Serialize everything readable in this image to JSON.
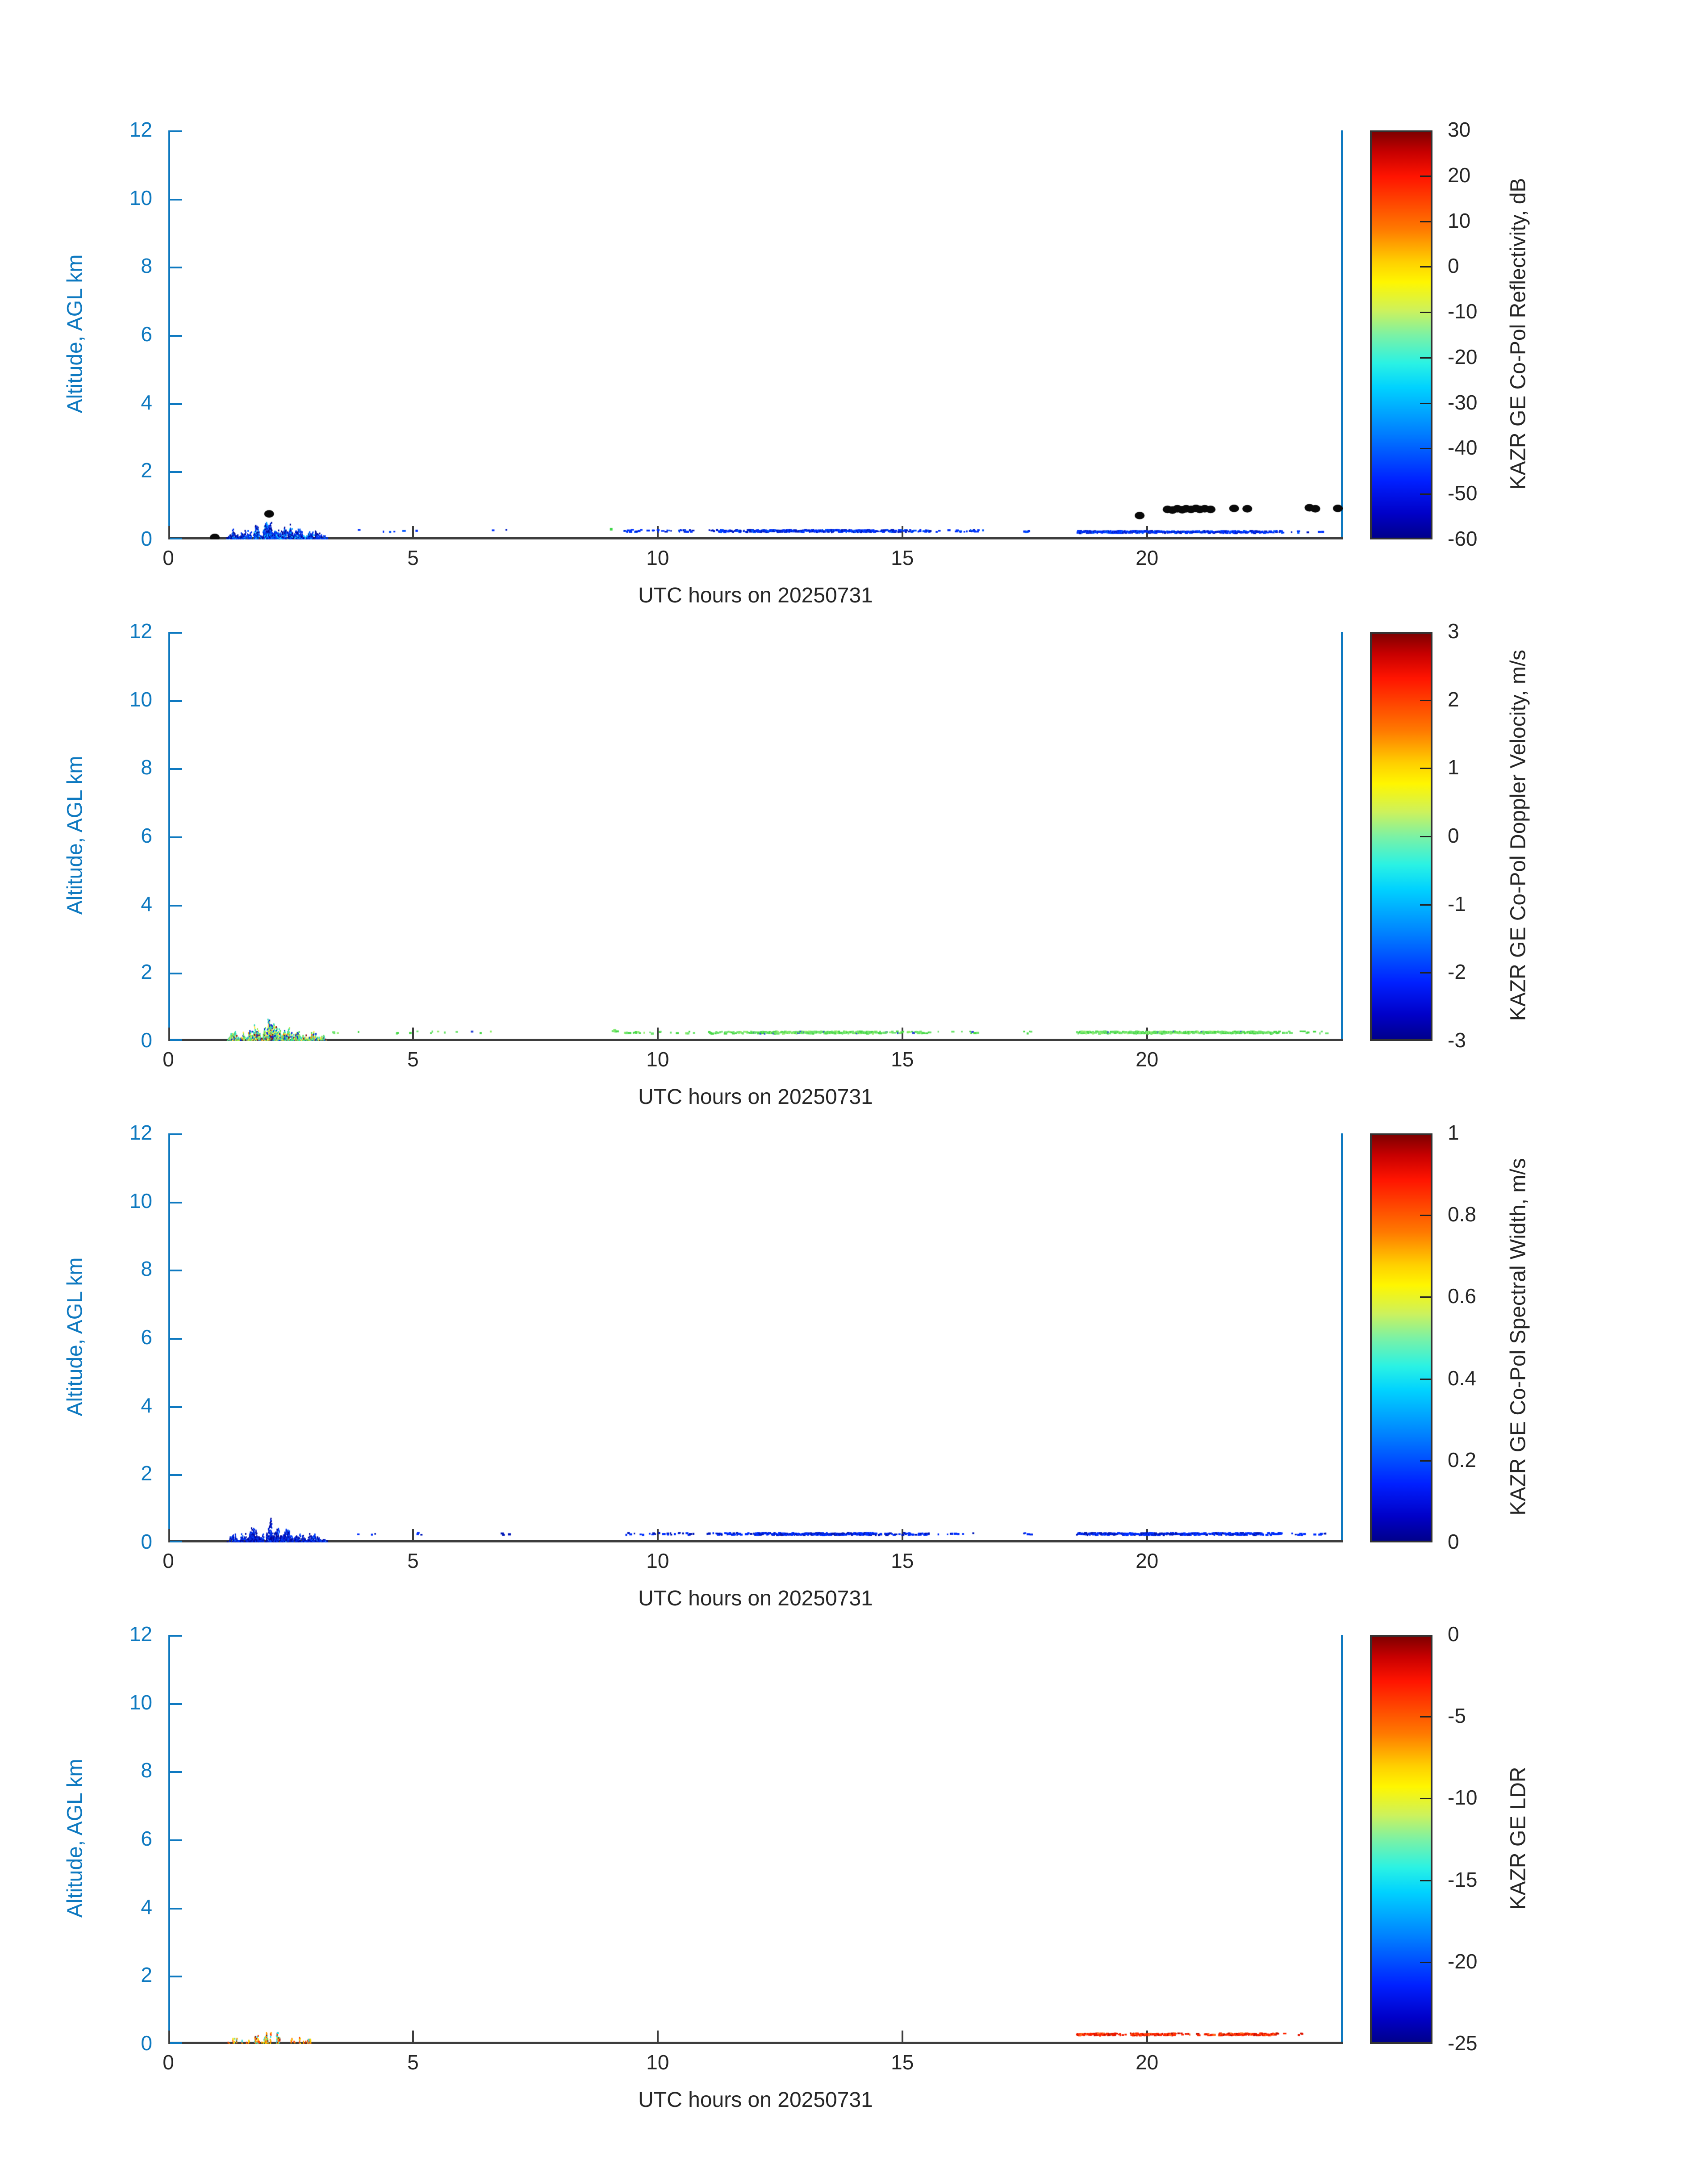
{
  "style": {
    "axis_blue": "#0e79c0",
    "text_dark": "#262626",
    "spine_dark": "#3d3d3d",
    "colorbar_border": "#333333",
    "jet_gradient": "linear-gradient(180deg,#7f0000 0%,#c80000 5%,#ff1400 11%,#ff7a00 24%,#ffd000 32%,#fff600 37%,#cdf25c 44%,#7cf2a4 50%,#2af2e4 57%,#00d2ff 63%,#0080ff 74%,#0020ff 86%,#0000c8 94%,#00008c 100%)"
  },
  "chart_data": [
    {
      "type": "scatter",
      "panel": "copol_reflectivity",
      "xlabel": "UTC hours on 20250731",
      "ylabel": "Altitude, AGL km",
      "xlim": [
        0,
        24
      ],
      "ylim": [
        0,
        12
      ],
      "xticks": [
        0,
        5,
        10,
        15,
        20
      ],
      "yticks": [
        0,
        2,
        4,
        6,
        8,
        10,
        12
      ],
      "grid": false,
      "colorbar": {
        "label": "KAZR GE Co-Pol Reflectivity, dB",
        "max": 30,
        "min": -60,
        "ticks": [
          30,
          20,
          10,
          0,
          -10,
          -20,
          -30,
          -40,
          -50,
          -60
        ]
      },
      "features": {
        "spike_cluster": {
          "x_range": [
            1.1,
            3.3
          ],
          "density": 0.8,
          "height_scale": 1.0,
          "bumps": [
            {
              "c": 1.32,
              "w": 0.06,
              "h": 0.3
            },
            {
              "c": 1.52,
              "w": 0.05,
              "h": 0.22
            },
            {
              "c": 1.75,
              "w": 0.09,
              "h": 0.45
            },
            {
              "c": 2.07,
              "w": 0.1,
              "h": 0.62
            },
            {
              "c": 2.22,
              "w": 0.06,
              "h": 0.4
            },
            {
              "c": 2.42,
              "w": 0.09,
              "h": 0.4
            },
            {
              "c": 2.65,
              "w": 0.08,
              "h": 0.3
            },
            {
              "c": 2.95,
              "w": 0.1,
              "h": 0.25
            },
            {
              "c": 3.15,
              "w": 0.05,
              "h": 0.15
            }
          ],
          "colors": [
            [
              "#000e9e",
              4
            ],
            [
              "#0033ee",
              4
            ],
            [
              "#0055ff",
              2
            ],
            [
              "#00a0ff",
              1
            ],
            [
              "#20d0ff",
              1
            ]
          ]
        },
        "bands": [
          {
            "x": [
              3.8,
              5.3
            ],
            "y": 0.25,
            "density": 0.05
          },
          {
            "x": [
              6.6,
              7.1
            ],
            "y": 0.25,
            "density": 0.04
          },
          {
            "x": [
              9.25,
              10.75
            ],
            "y": 0.25,
            "density": 0.22
          },
          {
            "x": [
              11.0,
              11.95
            ],
            "y": 0.25,
            "density": 0.45
          },
          {
            "x": [
              11.95,
              14.45
            ],
            "y": 0.25,
            "density": 0.9
          },
          {
            "x": [
              14.5,
              15.55
            ],
            "y": 0.25,
            "density": 0.4
          },
          {
            "x": [
              15.6,
              16.65
            ],
            "y": 0.25,
            "density": 0.12
          },
          {
            "x": [
              17.45,
              17.62
            ],
            "y": 0.25,
            "density": 0.35
          },
          {
            "x": [
              18.55,
              20.15
            ],
            "y": 0.22,
            "density": 0.85
          },
          {
            "x": [
              20.15,
              22.35
            ],
            "y": 0.22,
            "density": 0.7
          },
          {
            "x": [
              22.35,
              22.78
            ],
            "y": 0.22,
            "density": 0.45
          },
          {
            "x": [
              22.9,
              23.65
            ],
            "y": 0.22,
            "density": 0.07
          }
        ],
        "band_colors": [
          [
            "#0033ff",
            3
          ],
          [
            "#001dc8",
            2
          ],
          [
            "#0055ff",
            1
          ]
        ],
        "black_dots": [
          [
            0.95,
            0.06
          ],
          [
            2.06,
            0.75
          ],
          [
            19.85,
            0.7
          ],
          [
            20.42,
            0.88
          ],
          [
            20.52,
            0.86
          ],
          [
            20.62,
            0.9
          ],
          [
            20.72,
            0.87
          ],
          [
            20.8,
            0.9
          ],
          [
            20.9,
            0.88
          ],
          [
            21.0,
            0.91
          ],
          [
            21.08,
            0.88
          ],
          [
            21.18,
            0.9
          ],
          [
            21.3,
            0.88
          ],
          [
            21.78,
            0.91
          ],
          [
            22.05,
            0.9
          ],
          [
            23.32,
            0.93
          ],
          [
            23.44,
            0.9
          ],
          [
            23.9,
            0.91
          ]
        ],
        "point_dots": [
          {
            "x": 9.05,
            "y": 0.3,
            "color": "#3fd84a"
          }
        ]
      }
    },
    {
      "type": "scatter",
      "panel": "copol_doppler_velocity",
      "xlabel": "UTC hours on 20250731",
      "ylabel": "Altitude, AGL km",
      "xlim": [
        0,
        24
      ],
      "ylim": [
        0,
        12
      ],
      "xticks": [
        0,
        5,
        10,
        15,
        20
      ],
      "yticks": [
        0,
        2,
        4,
        6,
        8,
        10,
        12
      ],
      "grid": false,
      "colorbar": {
        "label": "KAZR GE Co-Pol Doppler Velocity, m/s",
        "max": 3,
        "min": -3,
        "ticks": [
          3,
          2,
          1,
          0,
          -1,
          -2,
          -3
        ]
      },
      "features": {
        "spike_cluster": {
          "x_range": [
            1.1,
            3.3
          ],
          "density": 0.8,
          "height_scale": 1.0,
          "bumps": [
            {
              "c": 1.32,
              "w": 0.06,
              "h": 0.3
            },
            {
              "c": 1.52,
              "w": 0.05,
              "h": 0.22
            },
            {
              "c": 1.75,
              "w": 0.09,
              "h": 0.45
            },
            {
              "c": 2.07,
              "w": 0.1,
              "h": 0.62
            },
            {
              "c": 2.22,
              "w": 0.06,
              "h": 0.4
            },
            {
              "c": 2.42,
              "w": 0.09,
              "h": 0.4
            },
            {
              "c": 2.65,
              "w": 0.08,
              "h": 0.3
            },
            {
              "c": 2.95,
              "w": 0.1,
              "h": 0.25
            },
            {
              "c": 3.15,
              "w": 0.05,
              "h": 0.15
            }
          ],
          "colors": [
            [
              "#35dcc0",
              3
            ],
            [
              "#5ee05e",
              3
            ],
            [
              "#a8ec50",
              1
            ],
            [
              "#ffe64a",
              2
            ],
            [
              "#0a2ed0",
              2
            ],
            [
              "#8c1616",
              1
            ],
            [
              "#ff8c00",
              0.5
            ]
          ]
        },
        "bands": [
          {
            "x": [
              3.35,
              3.45
            ],
            "y": 0.25,
            "density": 0.3
          },
          {
            "x": [
              3.85,
              3.95
            ],
            "y": 0.25,
            "density": 0.3
          },
          {
            "x": [
              4.4,
              6.6
            ],
            "y": 0.25,
            "density": 0.06
          },
          {
            "x": [
              9.05,
              9.15
            ],
            "y": 0.3,
            "density": 0.5
          },
          {
            "x": [
              9.25,
              10.75
            ],
            "y": 0.25,
            "density": 0.18
          },
          {
            "x": [
              11.0,
              11.95
            ],
            "y": 0.25,
            "density": 0.35
          },
          {
            "x": [
              11.95,
              14.45
            ],
            "y": 0.25,
            "density": 0.8
          },
          {
            "x": [
              14.5,
              15.55
            ],
            "y": 0.25,
            "density": 0.3
          },
          {
            "x": [
              15.6,
              16.65
            ],
            "y": 0.25,
            "density": 0.1
          },
          {
            "x": [
              17.45,
              17.62
            ],
            "y": 0.25,
            "density": 0.3
          },
          {
            "x": [
              18.55,
              22.6
            ],
            "y": 0.25,
            "density": 0.8
          },
          {
            "x": [
              22.6,
              22.95
            ],
            "y": 0.25,
            "density": 0.3
          },
          {
            "x": [
              23.0,
              23.65
            ],
            "y": 0.25,
            "density": 0.08
          }
        ],
        "band_colors": [
          [
            "#6fe46f",
            3
          ],
          [
            "#49d849",
            2
          ],
          [
            "#93ef6f",
            1
          ],
          [
            "#2e48d8",
            0.15
          ]
        ],
        "black_dots": [],
        "point_dots": []
      }
    },
    {
      "type": "scatter",
      "panel": "copol_spectral_width",
      "xlabel": "UTC hours on 20250731",
      "ylabel": "Altitude, AGL km",
      "xlim": [
        0,
        24
      ],
      "ylim": [
        0,
        12
      ],
      "xticks": [
        0,
        5,
        10,
        15,
        20
      ],
      "yticks": [
        0,
        2,
        4,
        6,
        8,
        10,
        12
      ],
      "grid": false,
      "colorbar": {
        "label": "KAZR GE Co-Pol Spectral Width, m/s",
        "max": 1,
        "min": 0,
        "ticks": [
          1,
          0.8,
          0.6,
          0.4,
          0.2,
          0
        ]
      },
      "features": {
        "spike_cluster": {
          "x_range": [
            1.1,
            3.3
          ],
          "density": 0.8,
          "height_scale": 1.0,
          "bumps": [
            {
              "c": 1.32,
              "w": 0.06,
              "h": 0.3
            },
            {
              "c": 1.52,
              "w": 0.05,
              "h": 0.22
            },
            {
              "c": 1.75,
              "w": 0.09,
              "h": 0.45
            },
            {
              "c": 2.07,
              "w": 0.1,
              "h": 0.62
            },
            {
              "c": 2.22,
              "w": 0.06,
              "h": 0.4
            },
            {
              "c": 2.42,
              "w": 0.09,
              "h": 0.4
            },
            {
              "c": 2.65,
              "w": 0.08,
              "h": 0.3
            },
            {
              "c": 2.95,
              "w": 0.1,
              "h": 0.25
            },
            {
              "c": 3.15,
              "w": 0.05,
              "h": 0.15
            }
          ],
          "colors": [
            [
              "#0008a0",
              4
            ],
            [
              "#0026dd",
              4
            ],
            [
              "#0040ff",
              2
            ],
            [
              "#2080ff",
              0.5
            ]
          ]
        },
        "bands": [
          {
            "x": [
              3.8,
              5.3
            ],
            "y": 0.25,
            "density": 0.05
          },
          {
            "x": [
              6.6,
              7.1
            ],
            "y": 0.25,
            "density": 0.04
          },
          {
            "x": [
              9.25,
              10.75
            ],
            "y": 0.25,
            "density": 0.2
          },
          {
            "x": [
              11.0,
              11.95
            ],
            "y": 0.25,
            "density": 0.4
          },
          {
            "x": [
              11.95,
              14.45
            ],
            "y": 0.25,
            "density": 0.85
          },
          {
            "x": [
              14.5,
              15.55
            ],
            "y": 0.25,
            "density": 0.35
          },
          {
            "x": [
              15.6,
              16.65
            ],
            "y": 0.25,
            "density": 0.1
          },
          {
            "x": [
              17.45,
              17.62
            ],
            "y": 0.25,
            "density": 0.3
          },
          {
            "x": [
              18.55,
              20.15
            ],
            "y": 0.25,
            "density": 0.82
          },
          {
            "x": [
              20.15,
              22.35
            ],
            "y": 0.25,
            "density": 0.68
          },
          {
            "x": [
              22.35,
              22.78
            ],
            "y": 0.25,
            "density": 0.4
          },
          {
            "x": [
              22.9,
              23.65
            ],
            "y": 0.25,
            "density": 0.06
          }
        ],
        "band_colors": [
          [
            "#0030ff",
            3
          ],
          [
            "#0018b8",
            2
          ]
        ],
        "black_dots": [],
        "point_dots": []
      }
    },
    {
      "type": "scatter",
      "panel": "ldr",
      "xlabel": "UTC hours on 20250731",
      "ylabel": "Altitude, AGL km",
      "xlim": [
        0,
        24
      ],
      "ylim": [
        0,
        12
      ],
      "xticks": [
        0,
        5,
        10,
        15,
        20
      ],
      "yticks": [
        0,
        2,
        4,
        6,
        8,
        10,
        12
      ],
      "grid": false,
      "colorbar": {
        "label": "KAZR GE LDR",
        "max": 0,
        "min": -25,
        "ticks": [
          0,
          -5,
          -10,
          -15,
          -20,
          -25
        ]
      },
      "features": {
        "spike_cluster": {
          "x_range": [
            1.15,
            3.0
          ],
          "density": 0.28,
          "height_scale": 0.8,
          "bumps": [
            {
              "c": 1.32,
              "w": 0.06,
              "h": 0.28
            },
            {
              "c": 1.52,
              "w": 0.05,
              "h": 0.2
            },
            {
              "c": 1.75,
              "w": 0.09,
              "h": 0.42
            },
            {
              "c": 2.07,
              "w": 0.1,
              "h": 0.58
            },
            {
              "c": 2.22,
              "w": 0.06,
              "h": 0.38
            },
            {
              "c": 2.42,
              "w": 0.09,
              "h": 0.38
            },
            {
              "c": 2.65,
              "w": 0.08,
              "h": 0.28
            },
            {
              "c": 2.9,
              "w": 0.07,
              "h": 0.22
            }
          ],
          "colors": [
            [
              "#ff9800",
              2
            ],
            [
              "#ffd800",
              2
            ],
            [
              "#ff4000",
              1.5
            ],
            [
              "#a01010",
              1
            ],
            [
              "#30d8d8",
              1.5
            ],
            [
              "#80e050",
              0.5
            ]
          ]
        },
        "bands": [
          {
            "x": [
              18.55,
              19.35
            ],
            "y": 0.28,
            "density": 0.75
          },
          {
            "x": [
              19.4,
              19.6
            ],
            "y": 0.28,
            "density": 0.2
          },
          {
            "x": [
              19.65,
              20.55
            ],
            "y": 0.28,
            "density": 0.7
          },
          {
            "x": [
              20.6,
              21.35
            ],
            "y": 0.28,
            "density": 0.3
          },
          {
            "x": [
              21.45,
              22.65
            ],
            "y": 0.28,
            "density": 0.85
          },
          {
            "x": [
              22.7,
              23.3
            ],
            "y": 0.28,
            "density": 0.05
          }
        ],
        "band_colors": [
          [
            "#ff2800",
            3
          ],
          [
            "#e81600",
            2
          ],
          [
            "#ff6a20",
            1.5
          ],
          [
            "#c01000",
            1
          ]
        ],
        "black_dots": [],
        "point_dots": []
      }
    }
  ]
}
